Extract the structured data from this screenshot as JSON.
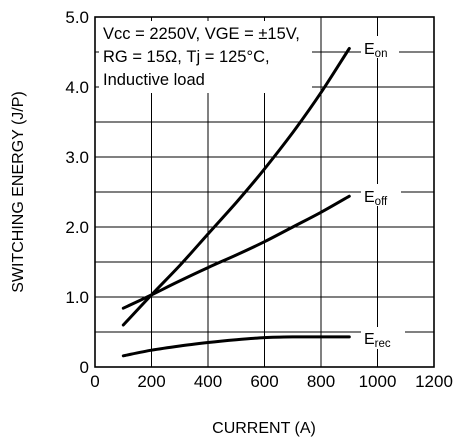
{
  "chart_data": {
    "type": "line",
    "xlabel": "CURRENT (A)",
    "ylabel": "SWITCHING ENERGY (J/P)",
    "xlim": [
      0,
      1200
    ],
    "ylim": [
      0,
      5.0
    ],
    "x_ticks": [
      0,
      200,
      400,
      600,
      800,
      1000,
      1200
    ],
    "y_ticks": [
      0,
      1.0,
      2.0,
      3.0,
      4.0,
      5.0
    ],
    "x_tick_labels": [
      "0",
      "200",
      "400",
      "600",
      "800",
      "1000",
      "1200"
    ],
    "y_tick_labels": [
      "0",
      "1.0",
      "2.0",
      "3.0",
      "4.0",
      "5.0"
    ],
    "grid": true,
    "annotation": {
      "line1": {
        "vcc": "Vcc",
        "vcc_rest": " = 2250V, ",
        "vge": "VGE",
        "vge_rest": " = ±15V,"
      },
      "line2": {
        "rg": "RG",
        "rg_rest": " = 15Ω, Tj = 125°C,"
      },
      "line3": "Inductive load"
    },
    "series": [
      {
        "name": "Eon",
        "label_main": "E",
        "label_sub": "on",
        "x": [
          100,
          200,
          300,
          400,
          500,
          600,
          700,
          800,
          900
        ],
        "y": [
          0.6,
          1.03,
          1.45,
          1.9,
          2.35,
          2.83,
          3.35,
          3.92,
          4.55
        ]
      },
      {
        "name": "Eoff",
        "label_main": "E",
        "label_sub": "off",
        "x": [
          100,
          200,
          300,
          400,
          500,
          600,
          700,
          800,
          900
        ],
        "y": [
          0.84,
          1.03,
          1.23,
          1.42,
          1.6,
          1.79,
          2.0,
          2.21,
          2.44
        ]
      },
      {
        "name": "Erec",
        "label_main": "E",
        "label_sub": "rec",
        "x": [
          100,
          200,
          300,
          400,
          500,
          600,
          700,
          800,
          900
        ],
        "y": [
          0.16,
          0.24,
          0.3,
          0.35,
          0.39,
          0.42,
          0.43,
          0.43,
          0.43
        ]
      }
    ]
  }
}
